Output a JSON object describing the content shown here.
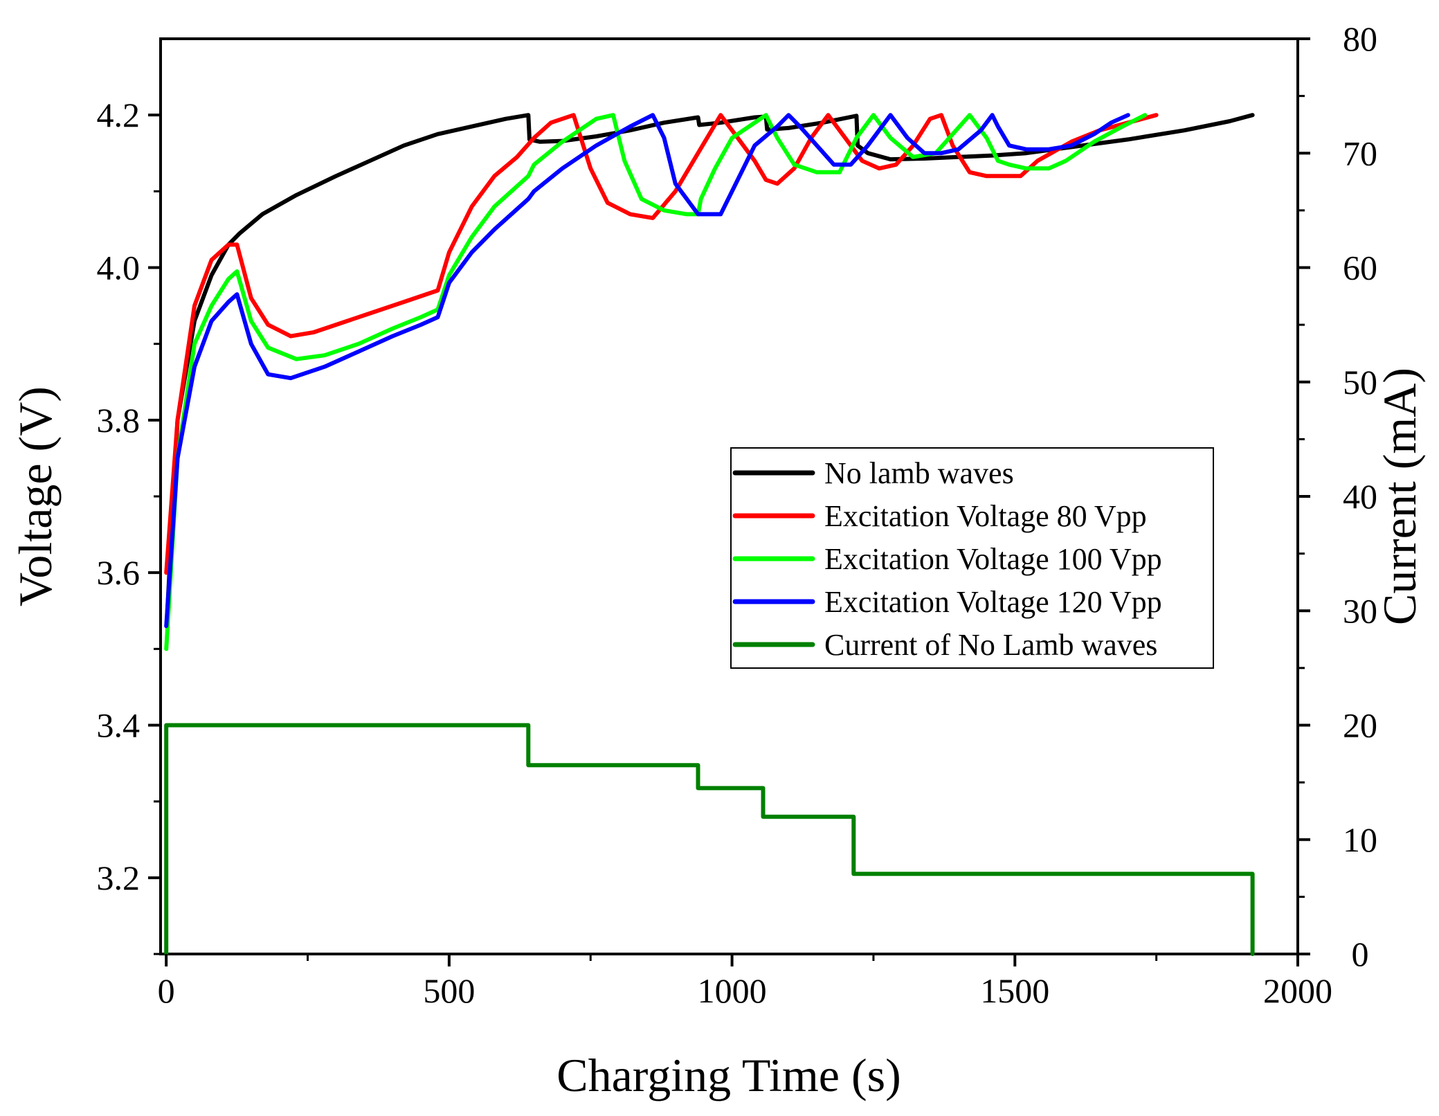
{
  "chart_data": {
    "type": "line",
    "title": "",
    "xlabel": "Charging Time (s)",
    "ylabel": "Voltage (V)",
    "y2label": "Current (mA)",
    "xlim": [
      -10,
      2000
    ],
    "ylim": [
      3.1,
      4.3
    ],
    "y2lim": [
      0,
      80
    ],
    "xticks": [
      0,
      500,
      1000,
      1500,
      2000
    ],
    "yticks": [
      3.2,
      3.4,
      3.6,
      3.8,
      4.0,
      4.2
    ],
    "y2ticks": [
      0,
      10,
      20,
      30,
      40,
      50,
      60,
      70,
      80
    ],
    "grid": false,
    "legend_position": "center-right",
    "series": [
      {
        "name": "No lamb waves",
        "color": "#000000",
        "axis": "left",
        "x": [
          2,
          20,
          50,
          80,
          110,
          130,
          170,
          230,
          300,
          360,
          420,
          480,
          540,
          600,
          640,
          642,
          660,
          700,
          760,
          820,
          880,
          940,
          942,
          980,
          1040,
          1060,
          1062,
          1100,
          1160,
          1220,
          1222,
          1240,
          1280,
          1340,
          1400,
          1460,
          1520,
          1600,
          1700,
          1800,
          1880,
          1920
        ],
        "values": [
          3.55,
          3.8,
          3.93,
          3.99,
          4.03,
          4.045,
          4.07,
          4.095,
          4.12,
          4.14,
          4.16,
          4.175,
          4.185,
          4.195,
          4.2,
          4.168,
          4.165,
          4.166,
          4.172,
          4.18,
          4.19,
          4.197,
          4.187,
          4.19,
          4.197,
          4.198,
          4.181,
          4.183,
          4.19,
          4.199,
          4.16,
          4.15,
          4.142,
          4.143,
          4.145,
          4.147,
          4.15,
          4.158,
          4.168,
          4.18,
          4.192,
          4.2
        ]
      },
      {
        "name": "Excitation Voltage 80 Vpp",
        "color": "#ff0000",
        "axis": "left",
        "x": [
          0,
          20,
          50,
          80,
          110,
          125,
          150,
          180,
          220,
          260,
          300,
          360,
          420,
          480,
          500,
          540,
          580,
          620,
          650,
          680,
          720,
          750,
          780,
          820,
          860,
          900,
          940,
          980,
          1010,
          1040,
          1060,
          1080,
          1110,
          1140,
          1170,
          1200,
          1230,
          1260,
          1290,
          1320,
          1350,
          1370,
          1390,
          1420,
          1450,
          1480,
          1510,
          1540,
          1600,
          1650,
          1700,
          1750
        ],
        "values": [
          3.6,
          3.8,
          3.95,
          4.01,
          4.03,
          4.03,
          3.96,
          3.925,
          3.91,
          3.915,
          3.925,
          3.94,
          3.955,
          3.97,
          4.02,
          4.08,
          4.12,
          4.145,
          4.17,
          4.19,
          4.2,
          4.13,
          4.085,
          4.07,
          4.065,
          4.1,
          4.15,
          4.2,
          4.17,
          4.14,
          4.115,
          4.11,
          4.13,
          4.17,
          4.2,
          4.17,
          4.14,
          4.13,
          4.135,
          4.16,
          4.195,
          4.2,
          4.16,
          4.125,
          4.12,
          4.12,
          4.12,
          4.14,
          4.165,
          4.18,
          4.19,
          4.2
        ]
      },
      {
        "name": "Excitation Voltage 100 Vpp",
        "color": "#00ff00",
        "axis": "left",
        "x": [
          0,
          20,
          50,
          80,
          110,
          125,
          150,
          180,
          230,
          280,
          340,
          400,
          450,
          480,
          500,
          540,
          580,
          640,
          650,
          700,
          760,
          790,
          810,
          840,
          880,
          920,
          940,
          945,
          970,
          1000,
          1050,
          1060,
          1080,
          1110,
          1150,
          1190,
          1220,
          1250,
          1280,
          1320,
          1360,
          1390,
          1420,
          1450,
          1470,
          1490,
          1520,
          1560,
          1590,
          1640,
          1690,
          1730
        ],
        "values": [
          3.5,
          3.75,
          3.9,
          3.95,
          3.985,
          3.995,
          3.93,
          3.895,
          3.88,
          3.885,
          3.9,
          3.92,
          3.935,
          3.945,
          3.99,
          4.04,
          4.08,
          4.12,
          4.135,
          4.165,
          4.195,
          4.2,
          4.14,
          4.09,
          4.075,
          4.07,
          4.07,
          4.09,
          4.13,
          4.17,
          4.195,
          4.2,
          4.17,
          4.135,
          4.125,
          4.125,
          4.17,
          4.2,
          4.17,
          4.145,
          4.15,
          4.175,
          4.2,
          4.17,
          4.14,
          4.135,
          4.13,
          4.13,
          4.14,
          4.165,
          4.185,
          4.2
        ]
      },
      {
        "name": "Excitation Voltage 120 Vpp",
        "color": "#0000ff",
        "axis": "left",
        "x": [
          0,
          20,
          50,
          80,
          110,
          125,
          150,
          180,
          220,
          280,
          340,
          400,
          450,
          480,
          500,
          540,
          580,
          640,
          650,
          700,
          760,
          820,
          860,
          880,
          900,
          940,
          980,
          1000,
          1040,
          1080,
          1100,
          1120,
          1150,
          1180,
          1210,
          1240,
          1280,
          1310,
          1340,
          1370,
          1400,
          1440,
          1460,
          1470,
          1490,
          1520,
          1560,
          1600,
          1640,
          1670,
          1700
        ],
        "values": [
          3.53,
          3.75,
          3.87,
          3.93,
          3.955,
          3.965,
          3.9,
          3.86,
          3.855,
          3.87,
          3.89,
          3.91,
          3.925,
          3.935,
          3.98,
          4.02,
          4.05,
          4.09,
          4.1,
          4.13,
          4.16,
          4.185,
          4.2,
          4.17,
          4.11,
          4.07,
          4.07,
          4.1,
          4.16,
          4.185,
          4.2,
          4.185,
          4.16,
          4.135,
          4.135,
          4.16,
          4.2,
          4.17,
          4.15,
          4.15,
          4.155,
          4.18,
          4.2,
          4.185,
          4.16,
          4.155,
          4.155,
          4.16,
          4.175,
          4.19,
          4.2
        ]
      },
      {
        "name": "Current of No Lamb waves",
        "color": "#008000",
        "axis": "right",
        "x": [
          0,
          0,
          640,
          640,
          940,
          940,
          1055,
          1055,
          1215,
          1215,
          1920,
          1920
        ],
        "values": [
          0,
          20,
          20,
          16.5,
          16.5,
          14.5,
          14.5,
          12,
          12,
          7,
          7,
          0
        ]
      }
    ]
  }
}
